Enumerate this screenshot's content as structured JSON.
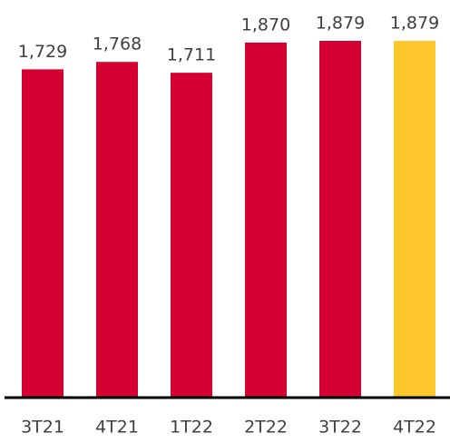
{
  "chart_data": {
    "type": "bar",
    "categories": [
      "3T21",
      "4T21",
      "1T22",
      "2T22",
      "3T22",
      "4T22"
    ],
    "values": [
      1729,
      1768,
      1711,
      1870,
      1879,
      1879
    ],
    "value_labels": [
      "1,729",
      "1,768",
      "1,711",
      "1,870",
      "1,879",
      "1,879"
    ],
    "colors": [
      "#d50032",
      "#d50032",
      "#d50032",
      "#d50032",
      "#d50032",
      "#ffc72c"
    ]
  }
}
